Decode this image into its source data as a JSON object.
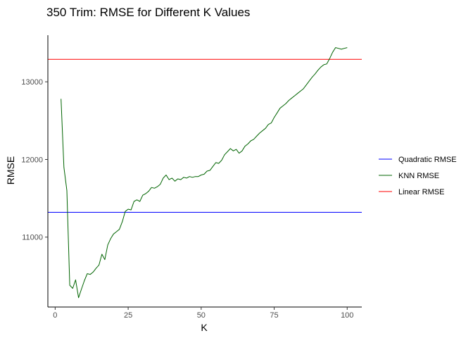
{
  "chart_data": {
    "type": "line",
    "title": "350 Trim: RMSE for Different K Values",
    "xlabel": "K",
    "ylabel": "RMSE",
    "xlim": [
      -2.5,
      105
    ],
    "ylim": [
      10100,
      13600
    ],
    "xticks": [
      0,
      25,
      50,
      75,
      100
    ],
    "yticks": [
      11000,
      12000,
      13000
    ],
    "grid": false,
    "legend_position": "right",
    "legend": [
      {
        "label": "Quadratic RMSE",
        "color": "#0000ff"
      },
      {
        "label": "KNN RMSE",
        "color": "#006400"
      },
      {
        "label": "Linear RMSE",
        "color": "#ff0000"
      }
    ],
    "hlines": [
      {
        "name": "Quadratic RMSE",
        "y": 11320,
        "color": "#0000ff"
      },
      {
        "name": "Linear RMSE",
        "y": 13290,
        "color": "#ff0000"
      }
    ],
    "series": [
      {
        "name": "KNN RMSE",
        "color": "#006400",
        "x": [
          2,
          3,
          4,
          5,
          6,
          7,
          8,
          9,
          10,
          11,
          12,
          13,
          14,
          15,
          16,
          17,
          18,
          19,
          20,
          21,
          22,
          23,
          24,
          25,
          26,
          27,
          28,
          29,
          30,
          31,
          32,
          33,
          34,
          35,
          36,
          37,
          38,
          39,
          40,
          41,
          42,
          43,
          44,
          45,
          46,
          47,
          48,
          49,
          50,
          51,
          52,
          53,
          54,
          55,
          56,
          57,
          58,
          59,
          60,
          61,
          62,
          63,
          64,
          65,
          66,
          67,
          68,
          69,
          70,
          71,
          72,
          73,
          74,
          75,
          76,
          77,
          78,
          79,
          80,
          81,
          82,
          83,
          84,
          85,
          86,
          87,
          88,
          89,
          90,
          91,
          92,
          93,
          94,
          95,
          96,
          97,
          98,
          99,
          100
        ],
        "y": [
          12780,
          11900,
          11600,
          10380,
          10340,
          10450,
          10220,
          10330,
          10440,
          10530,
          10520,
          10550,
          10600,
          10640,
          10780,
          10710,
          10900,
          10980,
          11040,
          11070,
          11100,
          11200,
          11330,
          11360,
          11350,
          11460,
          11480,
          11460,
          11540,
          11560,
          11590,
          11640,
          11630,
          11650,
          11680,
          11760,
          11800,
          11740,
          11760,
          11720,
          11750,
          11740,
          11770,
          11760,
          11780,
          11770,
          11780,
          11780,
          11800,
          11810,
          11850,
          11860,
          11910,
          11960,
          11950,
          11990,
          12060,
          12100,
          12140,
          12110,
          12130,
          12080,
          12110,
          12170,
          12200,
          12240,
          12260,
          12300,
          12340,
          12370,
          12400,
          12450,
          12470,
          12540,
          12600,
          12660,
          12690,
          12720,
          12760,
          12790,
          12820,
          12850,
          12880,
          12910,
          12960,
          13010,
          13060,
          13100,
          13150,
          13190,
          13220,
          13230,
          13300,
          13380,
          13440,
          13430,
          13420,
          13430,
          13440
        ]
      }
    ]
  }
}
